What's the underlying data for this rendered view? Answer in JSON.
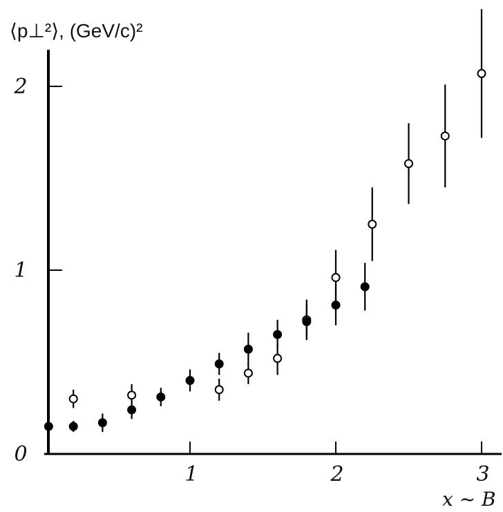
{
  "chart_data": {
    "type": "scatter",
    "title": "",
    "ylabel": "⟨p⊥²⟩, (GeV/c)²",
    "xlabel": "x ~ B",
    "xlim": [
      0.0,
      3.1
    ],
    "ylim": [
      0.0,
      2.4
    ],
    "x_ticks": [
      1,
      2,
      3
    ],
    "x_tick_labels": [
      "1",
      "2",
      "3"
    ],
    "y_ticks": [
      0,
      1,
      2
    ],
    "y_tick_labels": [
      "0",
      "1",
      "2"
    ],
    "grid": false,
    "legend": "none",
    "series": [
      {
        "marker": "open-circle",
        "points": [
          {
            "x": 0.2,
            "y": 0.3,
            "err": 0.05
          },
          {
            "x": 0.6,
            "y": 0.32,
            "err": 0.06
          },
          {
            "x": 1.2,
            "y": 0.35,
            "err": 0.06
          },
          {
            "x": 1.4,
            "y": 0.44,
            "err": 0.06
          },
          {
            "x": 1.6,
            "y": 0.52,
            "err": 0.09
          },
          {
            "x": 1.8,
            "y": 0.73,
            "err": 0.11
          },
          {
            "x": 2.0,
            "y": 0.96,
            "err": 0.15
          },
          {
            "x": 2.25,
            "y": 1.25,
            "err": 0.2
          },
          {
            "x": 2.5,
            "y": 1.58,
            "err": 0.22
          },
          {
            "x": 2.75,
            "y": 1.73,
            "err": 0.28
          },
          {
            "x": 3.0,
            "y": 2.07,
            "err": 0.35
          }
        ]
      },
      {
        "marker": "filled-circle",
        "points": [
          {
            "x": 0.03,
            "y": 0.15,
            "err": 0.03
          },
          {
            "x": 0.2,
            "y": 0.15,
            "err": 0.03
          },
          {
            "x": 0.4,
            "y": 0.17,
            "err": 0.05
          },
          {
            "x": 0.6,
            "y": 0.24,
            "err": 0.05
          },
          {
            "x": 0.8,
            "y": 0.31,
            "err": 0.05
          },
          {
            "x": 1.0,
            "y": 0.4,
            "err": 0.06
          },
          {
            "x": 1.2,
            "y": 0.49,
            "err": 0.06
          },
          {
            "x": 1.4,
            "y": 0.57,
            "err": 0.09
          },
          {
            "x": 1.6,
            "y": 0.65,
            "err": 0.08
          },
          {
            "x": 1.8,
            "y": 0.72,
            "err": 0.09
          },
          {
            "x": 2.0,
            "y": 0.81,
            "err": 0.11
          },
          {
            "x": 2.2,
            "y": 0.91,
            "err": 0.13
          }
        ]
      }
    ]
  }
}
